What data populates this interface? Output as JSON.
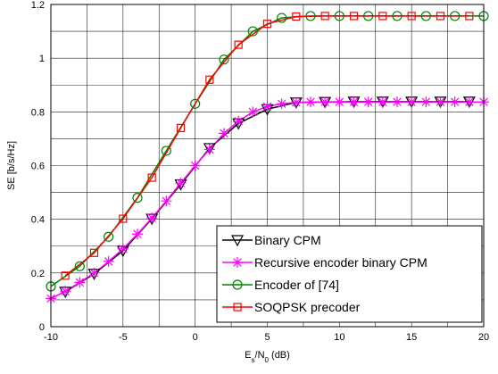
{
  "chart_data": {
    "type": "line",
    "title": "",
    "xlabel": {
      "main": "E",
      "sub1": "s",
      "mid": "/N",
      "sub2": "0",
      "tail": " (dB)"
    },
    "ylabel": "SE [b/s/Hz]",
    "xlim": [
      -10,
      20
    ],
    "ylim": [
      0,
      1.2
    ],
    "xticks": [
      -10,
      -5,
      0,
      5,
      10,
      15,
      20
    ],
    "yticks": [
      0,
      0.2,
      0.4,
      0.6,
      0.8,
      1,
      1.2
    ],
    "xtick_labels": [
      "-10",
      "-5",
      "0",
      "5",
      "10",
      "15",
      "20"
    ],
    "ytick_labels": [
      "0",
      "0.2",
      "0.4",
      "0.6",
      "0.8",
      "1",
      "1.2"
    ],
    "grid": true,
    "legend_position": "bottom-right",
    "series": [
      {
        "name": "Binary CPM",
        "marker": "triangle-down",
        "color": "#000000",
        "x": [
          -9,
          -7,
          -5,
          -3,
          -1,
          1,
          3,
          5,
          7,
          9,
          11,
          13,
          15,
          17,
          19
        ],
        "y": [
          0.13,
          0.197,
          0.283,
          0.402,
          0.53,
          0.665,
          0.757,
          0.81,
          0.835,
          0.837,
          0.838,
          0.838,
          0.838,
          0.838,
          0.838
        ]
      },
      {
        "name": "Recursive encoder binary CPM",
        "marker": "asterisk",
        "color": "#ff00ff",
        "x": [
          -10,
          -9,
          -8,
          -7,
          -6,
          -5,
          -4,
          -3,
          -2,
          -1,
          0,
          1,
          2,
          3,
          4,
          5,
          6,
          7,
          8,
          9,
          10,
          11,
          12,
          13,
          14,
          15,
          16,
          17,
          18,
          19,
          20
        ],
        "y": [
          0.105,
          0.132,
          0.165,
          0.2,
          0.243,
          0.29,
          0.345,
          0.405,
          0.468,
          0.535,
          0.6,
          0.66,
          0.72,
          0.765,
          0.8,
          0.82,
          0.83,
          0.835,
          0.837,
          0.837,
          0.837,
          0.837,
          0.837,
          0.837,
          0.837,
          0.837,
          0.837,
          0.837,
          0.837,
          0.837,
          0.837
        ]
      },
      {
        "name": "Encoder of [74]",
        "marker": "circle",
        "color": "#008000",
        "x": [
          -10,
          -8,
          -6,
          -4,
          -2,
          0,
          2,
          4,
          6,
          8,
          10,
          12,
          14,
          16,
          18,
          20
        ],
        "y": [
          0.15,
          0.225,
          0.335,
          0.48,
          0.655,
          0.83,
          0.995,
          1.1,
          1.15,
          1.157,
          1.157,
          1.157,
          1.157,
          1.157,
          1.157,
          1.157
        ]
      },
      {
        "name": "SOQPSK precoder",
        "marker": "square",
        "color": "#ff0000",
        "x": [
          -9,
          -7,
          -5,
          -3,
          -1,
          1,
          3,
          5,
          7,
          9,
          11,
          13,
          15,
          17,
          19
        ],
        "y": [
          0.19,
          0.275,
          0.402,
          0.555,
          0.74,
          0.92,
          1.05,
          1.128,
          1.155,
          1.157,
          1.157,
          1.157,
          1.157,
          1.157,
          1.157
        ]
      }
    ]
  }
}
